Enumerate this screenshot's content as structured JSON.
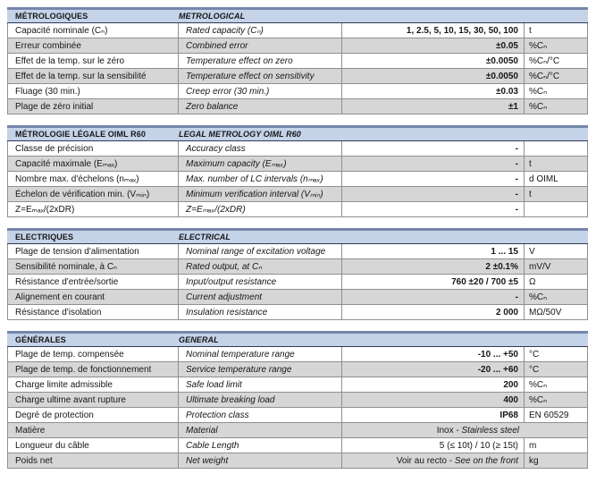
{
  "document": {
    "kind": "load-cell specification sheet table",
    "languages": [
      "French",
      "English"
    ],
    "colors": {
      "header_band": "#c5d3e9",
      "header_top_border": "#7486ab",
      "header_underline": "#2e3a57",
      "grid_line": "#8f8f8f",
      "alt_row": "#d6d6d6",
      "text": "#161616"
    }
  },
  "sections": [
    {
      "header": {
        "fr": "MÉTROLOGIQUES",
        "en": "METROLOGICAL"
      },
      "rows": [
        {
          "fr": "Capacité nominale (Cₙ)",
          "en": "Rated capacity (Cₙ)",
          "value": "1, 2.5, 5, 10, 15, 30, 50, 100",
          "unit": "t"
        },
        {
          "fr": "Erreur combinée",
          "en": "Combined error",
          "value": "±0.05",
          "unit": "%Cₙ"
        },
        {
          "fr": "Effet de la temp. sur le zéro",
          "en": "Temperature effect on zero",
          "value": "±0.0050",
          "unit": "%Cₙ/°C"
        },
        {
          "fr": "Effet de la temp. sur la sensibilité",
          "en": "Temperature effect on sensitivity",
          "value": "±0.0050",
          "unit": "%Cₙ/°C"
        },
        {
          "fr": "Fluage (30 min.)",
          "en": "Creep error (30 min.)",
          "value": "±0.03",
          "unit": "%Cₙ"
        },
        {
          "fr": "Plage de zéro initial",
          "en": "Zero balance",
          "value": "±1",
          "unit": "%Cₙ"
        }
      ]
    },
    {
      "header": {
        "fr": "MÉTROLOGIE LÉGALE OIML R60",
        "en": "LEGAL METROLOGY OIML R60"
      },
      "rows": [
        {
          "fr": "Classe de précision",
          "en": "Accuracy class",
          "value": "-",
          "unit": ""
        },
        {
          "fr": "Capacité maximale (Eₘₐₓ)",
          "en": "Maximum capacity (Eₘₐₓ)",
          "value": "-",
          "unit": "t"
        },
        {
          "fr": "Nombre max. d'échelons (nₘₐₓ)",
          "en": "Max. number of LC intervals (nₘₐₓ)",
          "value": "-",
          "unit": "d OIML"
        },
        {
          "fr": "Échelon de vérification min. (Vₘᵢₙ)",
          "en": "Minimum verification interval (Vₘᵢₙ)",
          "value": "-",
          "unit": "t"
        },
        {
          "fr": "Z=Eₘₐₓ/(2xDR)",
          "en": "Z=Eₘₐₓ/(2xDR)",
          "value": "-",
          "unit": ""
        }
      ]
    },
    {
      "header": {
        "fr": "ELECTRIQUES",
        "en": "ELECTRICAL"
      },
      "rows": [
        {
          "fr": "Plage de tension d'alimentation",
          "en": "Nominal range of excitation voltage",
          "value": "1 ... 15",
          "unit": "V"
        },
        {
          "fr": "Sensibilité nominale, à Cₙ",
          "en": "Rated output, at Cₙ",
          "value": "2 ±0.1%",
          "unit": "mV/V"
        },
        {
          "fr": "Résistance d'entrée/sortie",
          "en": "Input/output resistance",
          "value": "760 ±20 / 700 ±5",
          "unit": "Ω"
        },
        {
          "fr": "Alignement en courant",
          "en": "Current adjustment",
          "value": "-",
          "unit": "%Cₙ"
        },
        {
          "fr": "Résistance d'isolation",
          "en": "Insulation resistance",
          "value": "2 000",
          "unit": "MΩ/50V"
        }
      ]
    },
    {
      "header": {
        "fr": "GÉNÉRALES",
        "en": "GENERAL"
      },
      "rows": [
        {
          "fr": "Plage de temp. compensée",
          "en": "Nominal temperature range",
          "value": "-10 ... +50",
          "unit": "°C"
        },
        {
          "fr": "Plage de temp. de fonctionnement",
          "en": "Service temperature range",
          "value": "-20 ... +60",
          "unit": "°C"
        },
        {
          "fr": "Charge limite admissible",
          "en": "Safe load limit",
          "value": "200",
          "unit": "%Cₙ"
        },
        {
          "fr": "Charge ultime avant rupture",
          "en": "Ultimate breaking load",
          "value": "400",
          "unit": "%Cₙ"
        },
        {
          "fr": "Degré de protection",
          "en": "Protection class",
          "value": "IP68",
          "unit": "EN 60529"
        },
        {
          "fr": "Matière",
          "en": "Material",
          "value": "Inox -",
          "value_italic": "Stainless steel",
          "value_regular": true,
          "merge_unit": true,
          "unit": ""
        },
        {
          "fr": "Longueur du câble",
          "en": "Cable Length",
          "value": "5 (≤ 10t) / 10 (≥ 15t)",
          "value_regular": true,
          "unit": "m"
        },
        {
          "fr": "Poids net",
          "en": "Net weight",
          "value": "Voir au recto -",
          "value_italic": "See on the front",
          "value_regular": true,
          "unit": "kg"
        }
      ]
    }
  ]
}
